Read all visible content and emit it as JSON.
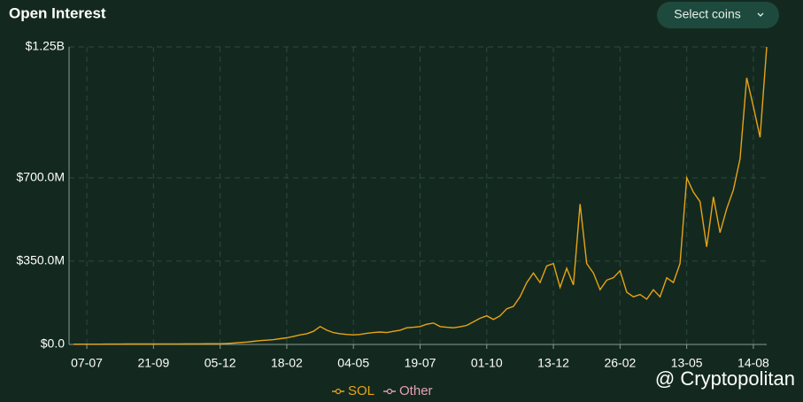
{
  "chart_data": {
    "type": "line",
    "title": "Open Interest",
    "categories": [
      null,
      null,
      "07-07",
      null,
      null,
      null,
      null,
      null,
      null,
      null,
      null,
      null,
      "21-09",
      null,
      null,
      null,
      null,
      null,
      null,
      null,
      null,
      null,
      "05-12",
      null,
      null,
      null,
      null,
      null,
      null,
      null,
      null,
      null,
      "18-02",
      null,
      null,
      null,
      null,
      null,
      null,
      null,
      null,
      null,
      "04-05",
      null,
      null,
      null,
      null,
      null,
      null,
      null,
      null,
      null,
      "19-07",
      null,
      null,
      null,
      null,
      null,
      null,
      null,
      null,
      null,
      "01-10",
      null,
      null,
      null,
      null,
      null,
      null,
      null,
      null,
      null,
      "13-12",
      null,
      null,
      null,
      null,
      null,
      null,
      null,
      null,
      null,
      "26-02",
      null,
      null,
      null,
      null,
      null,
      null,
      null,
      null,
      null,
      "13-05",
      null,
      null,
      null,
      null,
      null,
      null,
      null,
      null,
      null,
      "14-08",
      null,
      null
    ],
    "series": [
      {
        "name": "SOL",
        "color": "#e8a317",
        "values": [
          1000000.0,
          1000000.0,
          1000000.0,
          1200000.0,
          1300000.0,
          1400000.0,
          1500000.0,
          1600000.0,
          1700000.0,
          1800000.0,
          1900000.0,
          2000000.0,
          2000000.0,
          2100000.0,
          2200000.0,
          2300000.0,
          2400000.0,
          2500000.0,
          2600000.0,
          2700000.0,
          2800000.0,
          2900000.0,
          3000000.0,
          4000000.0,
          6000000.0,
          8000000.0,
          10000000.0,
          13000000.0,
          16000000.0,
          18000000.0,
          20000000.0,
          24000000.0,
          28000000.0,
          34000000.0,
          40000000.0,
          45000000.0,
          55000000.0,
          75000000.0,
          60000000.0,
          50000000.0,
          45000000.0,
          42000000.0,
          40000000.0,
          42000000.0,
          47000000.0,
          50000000.0,
          52000000.0,
          50000000.0,
          55000000.0,
          60000000.0,
          70000000.0,
          72000000.0,
          75000000.0,
          85000000.0,
          90000000.0,
          75000000.0,
          72000000.0,
          70000000.0,
          74000000.0,
          80000000.0,
          95000000.0,
          110000000.0,
          120000000.0,
          105000000.0,
          120000000.0,
          150000000.0,
          160000000.0,
          200000000.0,
          260000000.0,
          300000000.0,
          260000000.0,
          330000000.0,
          340000000.0,
          240000000.0,
          320000000.0,
          250000000.0,
          590000000.0,
          340000000.0,
          300000000.0,
          230000000.0,
          270000000.0,
          280000000.0,
          310000000.0,
          220000000.0,
          200000000.0,
          210000000.0,
          190000000.0,
          230000000.0,
          200000000.0,
          280000000.0,
          260000000.0,
          340000000.0,
          700000000.0,
          640000000.0,
          600000000.0,
          410000000.0,
          620000000.0,
          470000000.0,
          570000000.0,
          650000000.0,
          780000000.0,
          1120000000.0,
          1000000000.0,
          870000000.0,
          1250000000.0
        ]
      },
      {
        "name": "Other",
        "color": "#e6a0b4",
        "values": [
          null,
          null,
          null,
          null,
          null,
          null,
          null,
          null,
          null,
          null,
          null,
          null,
          null,
          null,
          null,
          null,
          null,
          null,
          null,
          null,
          null,
          null,
          null,
          null,
          null,
          null,
          null,
          null,
          null,
          null,
          null,
          null,
          null,
          null,
          null,
          null,
          null,
          null,
          null,
          null,
          null,
          null,
          null,
          null,
          null,
          null,
          null,
          null,
          null,
          null,
          null,
          null,
          null,
          null,
          null,
          null,
          null,
          null,
          null,
          null,
          null,
          null,
          null,
          null,
          null,
          null,
          null,
          null,
          null,
          null,
          null,
          null,
          null,
          null,
          null,
          null,
          null,
          null,
          null,
          null,
          null,
          null,
          null,
          null,
          null,
          null,
          null,
          null,
          null,
          null,
          null,
          null,
          null,
          null,
          null,
          null,
          null,
          null,
          null,
          null,
          null,
          null,
          null,
          null,
          null
        ]
      }
    ],
    "ylim": [
      0,
      1250000000
    ],
    "yticks": [
      {
        "value": 0,
        "label": "$0.0"
      },
      {
        "value": 350000000,
        "label": "$350.0M"
      },
      {
        "value": 700000000,
        "label": "$700.0M"
      },
      {
        "value": 1250000000,
        "label": "$1.25B"
      }
    ],
    "grid": true
  },
  "button": "Select coins",
  "watermark": "@ Cryptopolitan"
}
